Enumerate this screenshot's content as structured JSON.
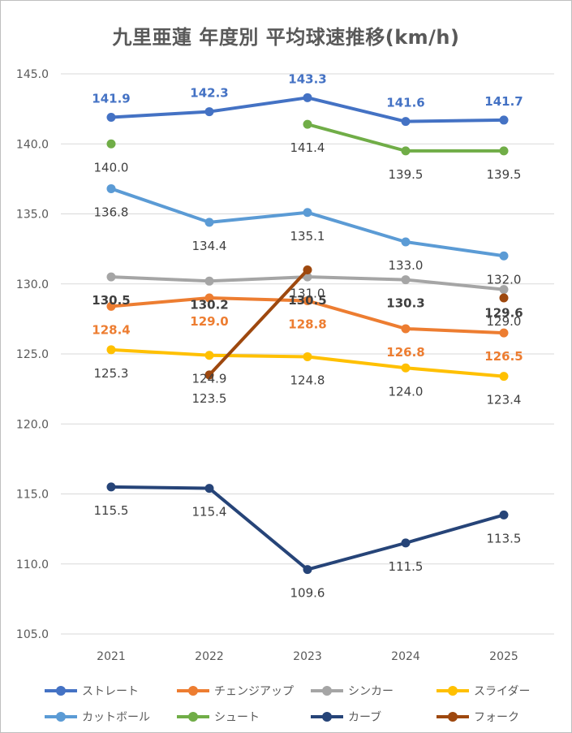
{
  "chart_data": {
    "type": "line",
    "title": "九里亜蓮 年度別 平均球速推移(km/h)",
    "categories": [
      "2021",
      "2022",
      "2023",
      "2024",
      "2025"
    ],
    "ylim": [
      105,
      145
    ],
    "yticks": [
      "105.0",
      "110.0",
      "115.0",
      "120.0",
      "125.0",
      "130.0",
      "135.0",
      "140.0",
      "145.0"
    ],
    "grid": true,
    "legend_position": "bottom",
    "series": [
      {
        "name": "ストレート",
        "color": "#4472c4",
        "values": [
          141.9,
          142.3,
          143.3,
          141.6,
          141.7
        ],
        "labels": [
          "141.9",
          "142.3",
          "143.3",
          "141.6",
          "141.7"
        ],
        "label_color": "#4472c4",
        "label_pos": "above",
        "bold": true
      },
      {
        "name": "チェンジアップ",
        "color": "#ed7d31",
        "values": [
          128.4,
          129.0,
          128.8,
          126.8,
          126.5
        ],
        "labels": [
          "128.4",
          "129.0",
          "128.8",
          "126.8",
          "126.5"
        ],
        "label_color": "#ed7d31",
        "label_pos": "below",
        "bold": true
      },
      {
        "name": "シンカー",
        "color": "#a5a5a5",
        "values": [
          130.5,
          130.2,
          130.5,
          130.3,
          129.6
        ],
        "labels": [
          "130.5",
          "130.2",
          "130.5",
          "130.3",
          "129.6"
        ],
        "label_color": "#404040",
        "label_pos": "below",
        "bold": true
      },
      {
        "name": "スライダー",
        "color": "#ffc000",
        "values": [
          125.3,
          124.9,
          124.8,
          124.0,
          123.4
        ],
        "labels": [
          "125.3",
          "124.9",
          "124.8",
          "124.0",
          "123.4"
        ],
        "label_color": "#404040",
        "label_pos": "below",
        "bold": false
      },
      {
        "name": "カットボール",
        "color": "#5b9bd5",
        "values": [
          136.8,
          134.4,
          135.1,
          133.0,
          132.0
        ],
        "labels": [
          "136.8",
          "134.4",
          "135.1",
          "133.0",
          "132.0"
        ],
        "label_color": "#404040",
        "label_pos": "below",
        "bold": false
      },
      {
        "name": "シュート",
        "color": "#70ad47",
        "values": [
          140.0,
          null,
          141.4,
          139.5,
          139.5
        ],
        "labels": [
          "140.0",
          null,
          "141.4",
          "139.5",
          "139.5"
        ],
        "label_color": "#404040",
        "label_pos": "below",
        "bold": false
      },
      {
        "name": "カーブ",
        "color": "#264478",
        "values": [
          115.5,
          115.4,
          109.6,
          111.5,
          113.5
        ],
        "labels": [
          "115.5",
          "115.4",
          "109.6",
          "111.5",
          "113.5"
        ],
        "label_color": "#404040",
        "label_pos": "below",
        "bold": false
      },
      {
        "name": "フォーク",
        "color": "#9e480e",
        "values": [
          null,
          123.5,
          131.0,
          null,
          129.0
        ],
        "labels": [
          null,
          "123.5",
          "131.0",
          null,
          "129.0"
        ],
        "label_color": "#404040",
        "label_pos": "below",
        "bold": false
      }
    ]
  }
}
